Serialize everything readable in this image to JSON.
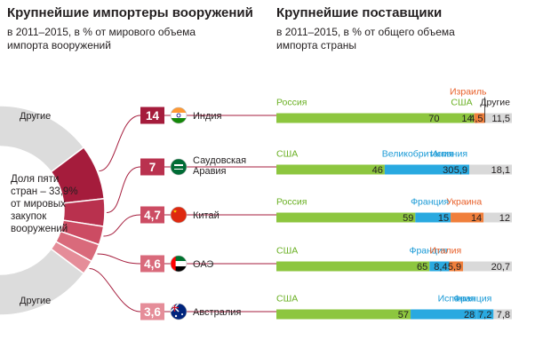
{
  "left": {
    "title": "Крупнейшие импортеры вооружений",
    "subtitle": "в 2011–2015, в % от мирового объема импорта вооружений"
  },
  "right": {
    "title": "Крупнейшие поставщики",
    "subtitle": "в 2011–2015, в % от общего объема импорта страны"
  },
  "donut": {
    "center_lines": [
      "Доля пяти",
      "стран – 33,9%",
      "от мировых",
      "закупок",
      "вооружений"
    ],
    "other_label_top": "Другие",
    "other_label_bottom": "Другие"
  },
  "colors": {
    "russia": "#8dc63f",
    "usa": "#8dc63f",
    "uk": "#29a9e0",
    "france": "#29a9e0",
    "spain": "#29a9e0",
    "ukraine": "#f07f3c",
    "italy": "#f07f3c",
    "israel": "#f07f3c",
    "other": "#d9d9d9",
    "badge_dark": "#a51c3c",
    "donut_other": "#dcdcdc",
    "label_green": "#6ab023",
    "label_blue": "#1a9ad6",
    "label_orange": "#e8612c"
  },
  "chart_data": {
    "type": "bar",
    "importers": [
      {
        "country": "Индия",
        "share": "14",
        "share_value": 14,
        "flag": "india-flag"
      },
      {
        "country": "Саудовская Аравия",
        "name_lines": [
          "Саудовская",
          "Аравия"
        ],
        "share": "7",
        "share_value": 7,
        "flag": "saudi-arabia-flag"
      },
      {
        "country": "Китай",
        "share": "4,7",
        "share_value": 4.7,
        "flag": "china-flag"
      },
      {
        "country": "ОАЭ",
        "share": "4,6",
        "share_value": 4.6,
        "flag": "uae-flag"
      },
      {
        "country": "Австралия",
        "share": "3,6",
        "share_value": 3.6,
        "flag": "australia-flag"
      }
    ],
    "suppliers": [
      {
        "importer": "Индия",
        "segments": [
          {
            "name": "Россия",
            "value": 70,
            "label": "70",
            "color": "russia"
          },
          {
            "name": "США",
            "value": 14,
            "label": "14",
            "color": "usa"
          },
          {
            "name": "Израиль",
            "value": 4.5,
            "label": "4,5",
            "color": "israel"
          },
          {
            "name": "Другие",
            "value": 11.5,
            "label": "11,5",
            "color": "other"
          }
        ]
      },
      {
        "importer": "Саудовская Аравия",
        "segments": [
          {
            "name": "США",
            "value": 46,
            "label": "46",
            "color": "usa"
          },
          {
            "name": "Великобритания",
            "value": 30,
            "label": "30",
            "color": "uk"
          },
          {
            "name": "Испания",
            "value": 5.9,
            "label": "5,9",
            "color": "spain"
          },
          {
            "name": "",
            "value": 18.1,
            "label": "18,1",
            "color": "other"
          }
        ]
      },
      {
        "importer": "Китай",
        "segments": [
          {
            "name": "Россия",
            "value": 59,
            "label": "59",
            "color": "russia"
          },
          {
            "name": "Франция",
            "value": 15,
            "label": "15",
            "color": "france"
          },
          {
            "name": "Украина",
            "value": 14,
            "label": "14",
            "color": "ukraine"
          },
          {
            "name": "",
            "value": 12,
            "label": "12",
            "color": "other"
          }
        ]
      },
      {
        "importer": "ОАЭ",
        "segments": [
          {
            "name": "США",
            "value": 65,
            "label": "65",
            "color": "usa"
          },
          {
            "name": "Франция",
            "value": 8.4,
            "label": "8,4",
            "color": "france"
          },
          {
            "name": "Италия",
            "value": 5.9,
            "label": "5,9",
            "color": "italy"
          },
          {
            "name": "",
            "value": 20.7,
            "label": "20,7",
            "color": "other"
          }
        ]
      },
      {
        "importer": "Австралия",
        "segments": [
          {
            "name": "США",
            "value": 57,
            "label": "57",
            "color": "usa"
          },
          {
            "name": "Испания",
            "value": 28,
            "label": "28",
            "color": "spain"
          },
          {
            "name": "Франция",
            "value": 7.2,
            "label": "7,2",
            "color": "france"
          },
          {
            "name": "",
            "value": 7.8,
            "label": "7,8",
            "color": "other"
          }
        ]
      }
    ],
    "xlim": [
      0,
      100
    ]
  }
}
